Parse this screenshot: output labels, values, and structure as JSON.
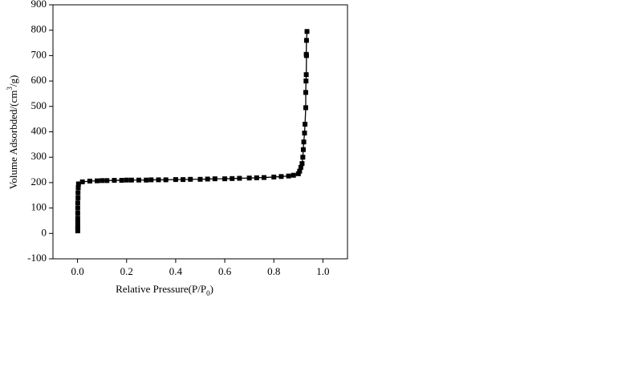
{
  "chart_data": {
    "type": "line",
    "xlabel_parts": [
      "Relative Pressure(P/P",
      "0",
      ")"
    ],
    "ylabel_parts": [
      "Volume Adsorbded/(cm",
      "3",
      "/g)"
    ],
    "xlim": [
      -0.1,
      1.1
    ],
    "ylim": [
      -100,
      900
    ],
    "xticks": [
      {
        "value": 0,
        "label": "0.0"
      },
      0.2,
      0.4,
      0.6,
      0.8,
      {
        "value": 1,
        "label": "1.0"
      }
    ],
    "yticks": [
      -100,
      0,
      100,
      200,
      300,
      400,
      500,
      600,
      700,
      800,
      900
    ],
    "series": [
      {
        "color": "#000000",
        "marker": "square",
        "x": [
          0.001,
          0.001,
          0.001,
          0.001,
          0.001,
          0.001,
          0.001,
          0.001,
          0.002,
          0.002,
          0.003,
          0.004,
          0.02,
          0.05,
          0.08,
          0.1,
          0.12,
          0.15,
          0.18,
          0.2,
          0.22,
          0.25,
          0.28,
          0.3,
          0.33,
          0.36,
          0.4,
          0.43,
          0.46,
          0.5,
          0.53,
          0.56,
          0.6,
          0.63,
          0.66,
          0.7,
          0.73,
          0.76,
          0.8,
          0.83,
          0.86,
          0.88,
          0.9,
          0.905,
          0.91,
          0.915,
          0.918,
          0.92,
          0.922,
          0.925,
          0.927,
          0.93,
          0.93,
          0.931,
          0.932,
          0.933,
          0.932,
          0.933,
          0.935
        ],
        "values": [
          10,
          20,
          30,
          45,
          60,
          80,
          100,
          120,
          140,
          160,
          180,
          195,
          203,
          206,
          207,
          208,
          208,
          209,
          209,
          210,
          210,
          210,
          210,
          211,
          211,
          211,
          212,
          212,
          213,
          213,
          214,
          215,
          215,
          216,
          217,
          218,
          219,
          220,
          222,
          224,
          226,
          229,
          235,
          245,
          260,
          275,
          300,
          330,
          360,
          395,
          430,
          495,
          555,
          600,
          625,
          700,
          705,
          760,
          795
        ]
      }
    ]
  }
}
